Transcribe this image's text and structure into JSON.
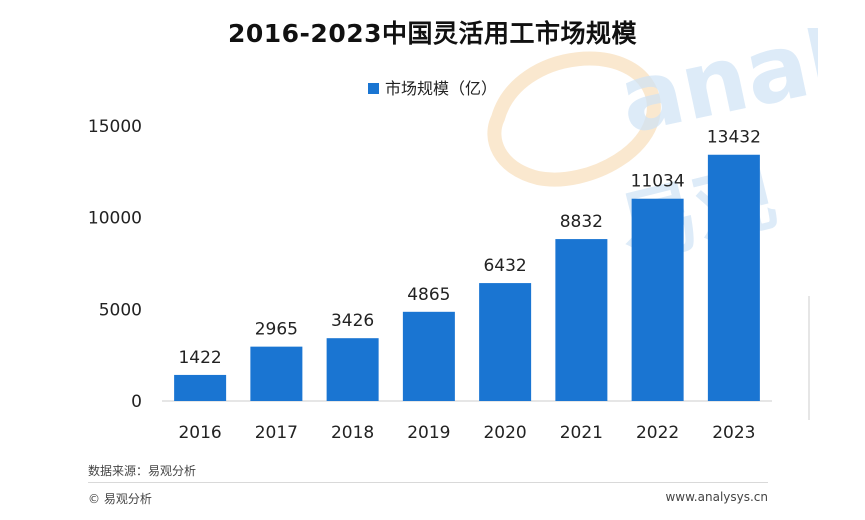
{
  "chart_data": {
    "type": "bar",
    "title": "2016-2023中国灵活用工市场规模",
    "categories": [
      "2016",
      "2017",
      "2018",
      "2019",
      "2020",
      "2021",
      "2022",
      "2023"
    ],
    "series": [
      {
        "name": "市场规模（亿）",
        "values": [
          1422,
          2965,
          3426,
          4865,
          6432,
          8832,
          11034,
          13432
        ]
      }
    ],
    "ylim": [
      0,
      15000
    ],
    "yticks": [
      0,
      5000,
      10000,
      15000
    ],
    "xlabel": "",
    "ylabel": "",
    "grid": false,
    "legend_position": "top-center",
    "bar_color": "#1a75d2"
  },
  "footer": {
    "source": "数据来源：易观分析",
    "copyright": "© 易观分析",
    "site": "www.analysys.cn"
  },
  "watermark": {
    "text": "analy",
    "chinese": "易观"
  }
}
